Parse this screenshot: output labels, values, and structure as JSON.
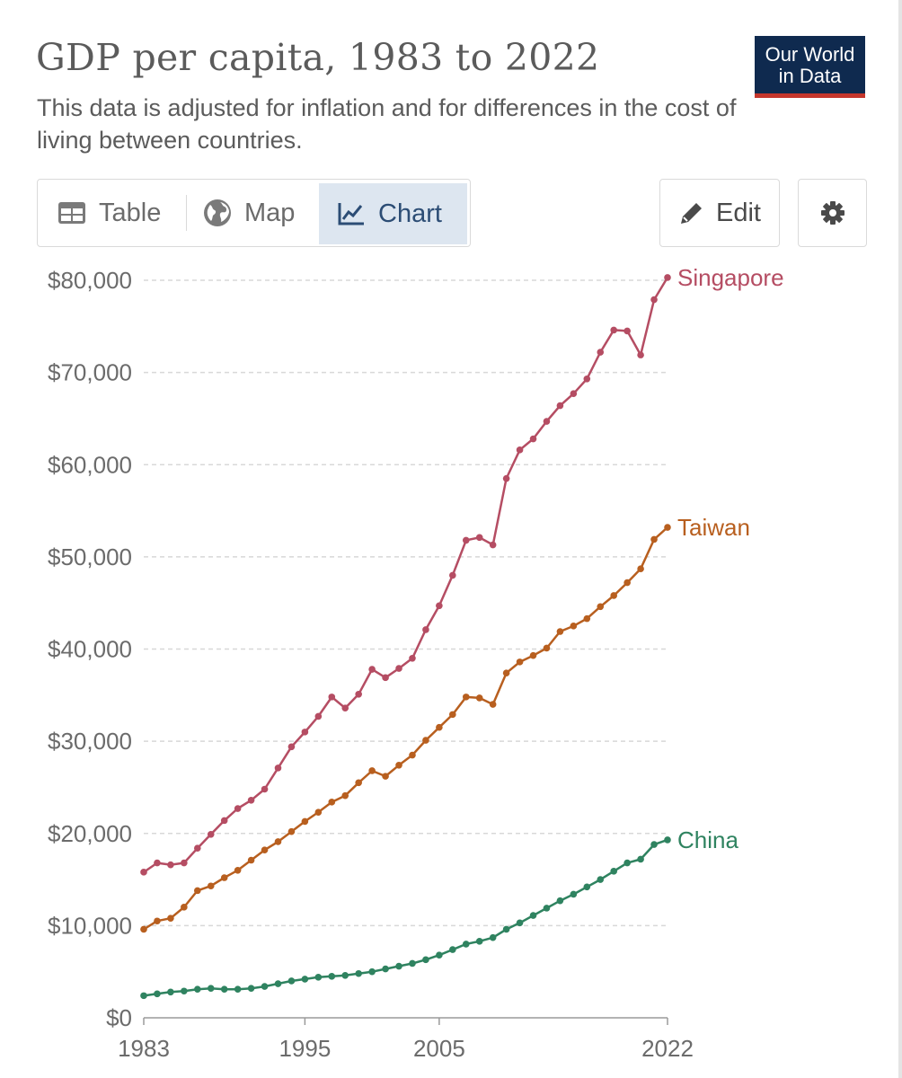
{
  "header": {
    "title": "GDP per capita, 1983 to 2022",
    "subtitle": "This data is adjusted for inflation and for differences in the cost of living between countries.",
    "logo_line1": "Our World",
    "logo_line2": "in Data"
  },
  "tabs": [
    {
      "label": "Table",
      "icon": "table-icon",
      "active": false
    },
    {
      "label": "Map",
      "icon": "globe-icon",
      "active": false
    },
    {
      "label": "Chart",
      "icon": "line-chart-icon",
      "active": true
    }
  ],
  "buttons": {
    "edit_label": "Edit",
    "edit_icon": "pencil-icon",
    "settings_icon": "gear-icon"
  },
  "colors": {
    "Singapore": "#b54d63",
    "Taiwan": "#b85f1f",
    "China": "#2f8360",
    "grid": "#d8d8d8",
    "logo_bg": "#0f2a4f",
    "logo_accent": "#c5362c",
    "active_tab_bg": "#dde6f0"
  },
  "chart_data": {
    "type": "line",
    "title": "GDP per capita, 1983 to 2022",
    "xlabel": "",
    "ylabel": "",
    "x_ticks": [
      1983,
      1995,
      2005,
      2022
    ],
    "y_ticks": [
      0,
      10000,
      20000,
      30000,
      40000,
      50000,
      60000,
      70000,
      80000
    ],
    "y_tick_labels": [
      "$0",
      "$10,000",
      "$20,000",
      "$30,000",
      "$40,000",
      "$50,000",
      "$60,000",
      "$70,000",
      "$80,000"
    ],
    "xlim": [
      1983,
      2022
    ],
    "ylim": [
      0,
      80000
    ],
    "x": [
      1983,
      1984,
      1985,
      1986,
      1987,
      1988,
      1989,
      1990,
      1991,
      1992,
      1993,
      1994,
      1995,
      1996,
      1997,
      1998,
      1999,
      2000,
      2001,
      2002,
      2003,
      2004,
      2005,
      2006,
      2007,
      2008,
      2009,
      2010,
      2011,
      2012,
      2013,
      2014,
      2015,
      2016,
      2017,
      2018,
      2019,
      2020,
      2021,
      2022
    ],
    "series": [
      {
        "name": "Singapore",
        "values": [
          15800,
          16800,
          16600,
          16800,
          18400,
          19900,
          21400,
          22700,
          23600,
          24800,
          27100,
          29400,
          31000,
          32700,
          34800,
          33600,
          35100,
          37800,
          36900,
          37900,
          39000,
          42100,
          44700,
          48000,
          51800,
          52100,
          51300,
          58500,
          61600,
          62800,
          64700,
          66400,
          67700,
          69300,
          72200,
          74600,
          74500,
          71900,
          77900,
          80300
        ]
      },
      {
        "name": "Taiwan",
        "values": [
          9600,
          10500,
          10800,
          12000,
          13800,
          14300,
          15200,
          16000,
          17100,
          18200,
          19100,
          20200,
          21300,
          22300,
          23400,
          24100,
          25500,
          26800,
          26200,
          27400,
          28500,
          30100,
          31500,
          32900,
          34800,
          34700,
          34000,
          37400,
          38600,
          39300,
          40100,
          41900,
          42500,
          43300,
          44600,
          45800,
          47200,
          48700,
          51900,
          53200
        ]
      },
      {
        "name": "China",
        "values": [
          2400,
          2600,
          2800,
          2900,
          3100,
          3200,
          3100,
          3100,
          3200,
          3400,
          3700,
          4000,
          4200,
          4400,
          4500,
          4600,
          4800,
          5000,
          5300,
          5600,
          5900,
          6300,
          6800,
          7400,
          8000,
          8300,
          8700,
          9600,
          10300,
          11100,
          11900,
          12700,
          13400,
          14200,
          15000,
          15900,
          16800,
          17200,
          18800,
          19300
        ]
      }
    ]
  }
}
